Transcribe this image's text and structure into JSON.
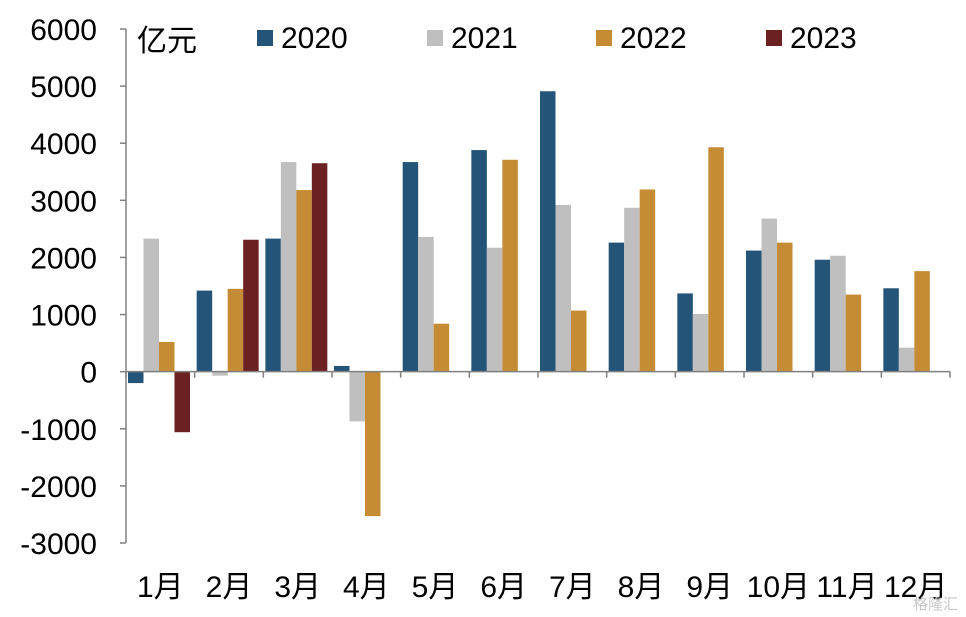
{
  "chart_data": {
    "type": "bar",
    "unit": "亿元",
    "categories": [
      "1月",
      "2月",
      "3月",
      "4月",
      "5月",
      "6月",
      "7月",
      "8月",
      "9月",
      "10月",
      "11月",
      "12月"
    ],
    "series": [
      {
        "name": "2020",
        "color": "#255479",
        "values": [
          -200,
          1420,
          2330,
          100,
          3670,
          3880,
          4910,
          2260,
          1370,
          2120,
          1960,
          1460
        ]
      },
      {
        "name": "2021",
        "color": "#bfbfbf",
        "values": [
          2330,
          -70,
          3670,
          -870,
          2360,
          2170,
          2920,
          2870,
          1010,
          2680,
          2030,
          420
        ]
      },
      {
        "name": "2022",
        "color": "#c68c35",
        "values": [
          520,
          1450,
          3180,
          -2530,
          840,
          3710,
          1070,
          3190,
          3930,
          2260,
          1350,
          1760
        ]
      },
      {
        "name": "2023",
        "color": "#6b2121",
        "values": [
          -1060,
          2310,
          3650,
          null,
          null,
          null,
          null,
          null,
          null,
          null,
          null,
          null
        ]
      }
    ],
    "ylim": [
      -3000,
      6000
    ],
    "yticks": [
      6000,
      5000,
      4000,
      3000,
      2000,
      1000,
      0,
      -1000,
      -2000,
      -3000
    ],
    "grid": false,
    "legend_position": "top"
  },
  "watermark": "格隆汇"
}
